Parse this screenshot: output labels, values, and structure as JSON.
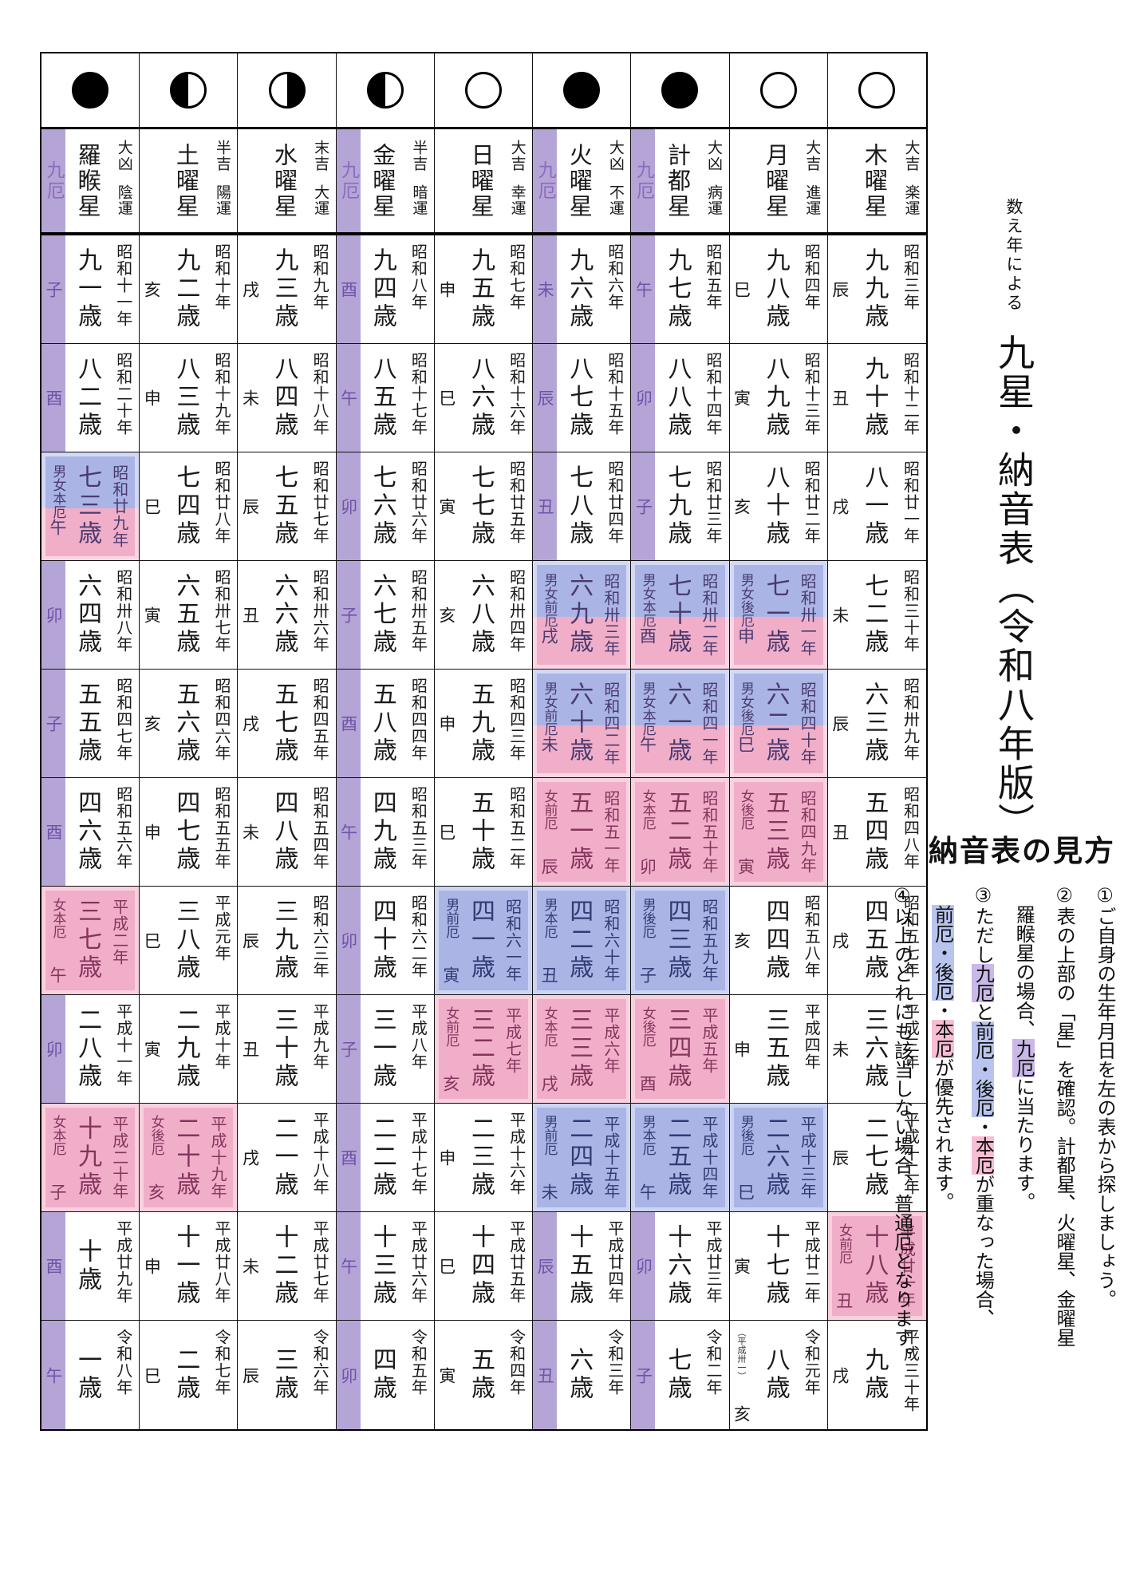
{
  "title": {
    "prefix": "数え年による",
    "main": "九星・納音表（令和八年版）"
  },
  "guide": {
    "heading": "納音表の見方",
    "lines": [
      {
        "indent": false,
        "parts": [
          {
            "t": "①ご自身の生年月日を左の表から探しましょう。"
          }
        ]
      },
      {
        "indent": false,
        "parts": [
          {
            "t": "②表の上部の「星」を確認。計都星、火曜星、金曜星"
          }
        ]
      },
      {
        "indent": true,
        "parts": [
          {
            "t": "羅睺星の場合、"
          },
          {
            "t": "九厄",
            "hl": "purple"
          },
          {
            "t": "に当たります。"
          }
        ]
      },
      {
        "indent": false,
        "parts": [
          {
            "t": "③ただし"
          },
          {
            "t": "九厄",
            "hl": "purple"
          },
          {
            "t": "と"
          },
          {
            "t": "前厄・後厄",
            "hl": "blue"
          },
          {
            "t": "・"
          },
          {
            "t": "本厄",
            "hl": "pink"
          },
          {
            "t": "が重なった場合、"
          }
        ]
      },
      {
        "indent": true,
        "parts": [
          {
            "t": "前厄・後厄",
            "hl": "blue"
          },
          {
            "t": "・"
          },
          {
            "t": "本厄",
            "hl": "pink"
          },
          {
            "t": "が優先されます。"
          }
        ]
      },
      {
        "indent": false,
        "parts": [
          {
            "t": "④以上のどれにも該当しない場合、普通厄となります。"
          }
        ]
      }
    ]
  },
  "table": {
    "kyuyaku_label": "九厄",
    "columns": [
      {
        "moon": "full",
        "star": "羅睺星",
        "luck": "大凶",
        "fortune": "陰運",
        "kyuyaku": true
      },
      {
        "moon": "half_left",
        "star": "土曜星",
        "luck": "半吉",
        "fortune": "陽運",
        "kyuyaku": false
      },
      {
        "moon": "half_right",
        "star": "水曜星",
        "luck": "末吉",
        "fortune": "大運",
        "kyuyaku": false
      },
      {
        "moon": "half_left",
        "star": "金曜星",
        "luck": "半吉",
        "fortune": "暗運",
        "kyuyaku": true
      },
      {
        "moon": "empty",
        "star": "日曜星",
        "luck": "大吉",
        "fortune": "幸運",
        "kyuyaku": false
      },
      {
        "moon": "full",
        "star": "火曜星",
        "luck": "大凶",
        "fortune": "不運",
        "kyuyaku": true
      },
      {
        "moon": "full",
        "star": "計都星",
        "luck": "大凶",
        "fortune": "病運",
        "kyuyaku": true
      },
      {
        "moon": "empty",
        "star": "月曜星",
        "luck": "大吉",
        "fortune": "進運",
        "kyuyaku": false
      },
      {
        "moon": "empty",
        "star": "木曜星",
        "luck": "大吉",
        "fortune": "楽運",
        "kyuyaku": false
      }
    ],
    "rows": [
      {
        "cells": [
          {
            "z": "子",
            "age": "九一歳",
            "year": "昭和十一年"
          },
          {
            "z": "亥",
            "age": "九二歳",
            "year": "昭和十年"
          },
          {
            "z": "戌",
            "age": "九三歳",
            "year": "昭和九年"
          },
          {
            "z": "酉",
            "age": "九四歳",
            "year": "昭和八年"
          },
          {
            "z": "申",
            "age": "九五歳",
            "year": "昭和七年"
          },
          {
            "z": "未",
            "age": "九六歳",
            "year": "昭和六年"
          },
          {
            "z": "午",
            "age": "九七歳",
            "year": "昭和五年"
          },
          {
            "z": "巳",
            "age": "九八歳",
            "year": "昭和四年"
          },
          {
            "z": "辰",
            "age": "九九歳",
            "year": "昭和三年"
          }
        ]
      },
      {
        "cells": [
          {
            "z": "酉",
            "age": "八二歳",
            "year": "昭和二十年"
          },
          {
            "z": "申",
            "age": "八三歳",
            "year": "昭和十九年"
          },
          {
            "z": "未",
            "age": "八四歳",
            "year": "昭和十八年"
          },
          {
            "z": "午",
            "age": "八五歳",
            "year": "昭和十七年"
          },
          {
            "z": "巳",
            "age": "八六歳",
            "year": "昭和十六年"
          },
          {
            "z": "辰",
            "age": "八七歳",
            "year": "昭和十五年"
          },
          {
            "z": "卯",
            "age": "八八歳",
            "year": "昭和十四年"
          },
          {
            "z": "寅",
            "age": "八九歳",
            "year": "昭和十三年"
          },
          {
            "z": "丑",
            "age": "九十歳",
            "year": "昭和十二年"
          }
        ]
      },
      {
        "cells": [
          {
            "z": "午",
            "age": "七三歳",
            "year": "昭和廿九年",
            "yaku": "男女本厄",
            "hl": "both"
          },
          {
            "z": "巳",
            "age": "七四歳",
            "year": "昭和廿八年"
          },
          {
            "z": "辰",
            "age": "七五歳",
            "year": "昭和廿七年"
          },
          {
            "z": "卯",
            "age": "七六歳",
            "year": "昭和廿六年"
          },
          {
            "z": "寅",
            "age": "七七歳",
            "year": "昭和廿五年"
          },
          {
            "z": "丑",
            "age": "七八歳",
            "year": "昭和廿四年"
          },
          {
            "z": "子",
            "age": "七九歳",
            "year": "昭和廿三年"
          },
          {
            "z": "亥",
            "age": "八十歳",
            "year": "昭和廿二年"
          },
          {
            "z": "戌",
            "age": "八一歳",
            "year": "昭和廿一年"
          }
        ]
      },
      {
        "cells": [
          {
            "z": "卯",
            "age": "六四歳",
            "year": "昭和卅八年"
          },
          {
            "z": "寅",
            "age": "六五歳",
            "year": "昭和卅七年"
          },
          {
            "z": "丑",
            "age": "六六歳",
            "year": "昭和卅六年"
          },
          {
            "z": "子",
            "age": "六七歳",
            "year": "昭和卅五年"
          },
          {
            "z": "亥",
            "age": "六八歳",
            "year": "昭和卅四年"
          },
          {
            "z": "戌",
            "age": "六九歳",
            "year": "昭和卅三年",
            "yaku": "男女前厄",
            "hl": "both"
          },
          {
            "z": "酉",
            "age": "七十歳",
            "year": "昭和卅二年",
            "yaku": "男女本厄",
            "hl": "both"
          },
          {
            "z": "申",
            "age": "七一歳",
            "year": "昭和卅一年",
            "yaku": "男女後厄",
            "hl": "both"
          },
          {
            "z": "未",
            "age": "七二歳",
            "year": "昭和三十年"
          }
        ]
      },
      {
        "cells": [
          {
            "z": "子",
            "age": "五五歳",
            "year": "昭和四七年"
          },
          {
            "z": "亥",
            "age": "五六歳",
            "year": "昭和四六年"
          },
          {
            "z": "戌",
            "age": "五七歳",
            "year": "昭和四五年"
          },
          {
            "z": "酉",
            "age": "五八歳",
            "year": "昭和四四年"
          },
          {
            "z": "申",
            "age": "五九歳",
            "year": "昭和四三年"
          },
          {
            "z": "未",
            "age": "六十歳",
            "year": "昭和四二年",
            "yaku": "男女前厄",
            "hl": "both"
          },
          {
            "z": "午",
            "age": "六一歳",
            "year": "昭和四一年",
            "yaku": "男女本厄",
            "hl": "both"
          },
          {
            "z": "巳",
            "age": "六二歳",
            "year": "昭和四十年",
            "yaku": "男女後厄",
            "hl": "both"
          },
          {
            "z": "辰",
            "age": "六三歳",
            "year": "昭和卅九年"
          }
        ]
      },
      {
        "cells": [
          {
            "z": "酉",
            "age": "四六歳",
            "year": "昭和五六年"
          },
          {
            "z": "申",
            "age": "四七歳",
            "year": "昭和五五年"
          },
          {
            "z": "未",
            "age": "四八歳",
            "year": "昭和五四年"
          },
          {
            "z": "午",
            "age": "四九歳",
            "year": "昭和五三年"
          },
          {
            "z": "巳",
            "age": "五十歳",
            "year": "昭和五二年"
          },
          {
            "z": "辰",
            "age": "五一歳",
            "year": "昭和五一年",
            "yaku": "女前厄",
            "hl": "female"
          },
          {
            "z": "卯",
            "age": "五二歳",
            "year": "昭和五十年",
            "yaku": "女本厄",
            "hl": "female"
          },
          {
            "z": "寅",
            "age": "五三歳",
            "year": "昭和四九年",
            "yaku": "女後厄",
            "hl": "female"
          },
          {
            "z": "丑",
            "age": "五四歳",
            "year": "昭和四八年"
          }
        ]
      },
      {
        "cells": [
          {
            "z": "午",
            "age": "三七歳",
            "year": "平成二年",
            "yaku": "女本厄",
            "hl": "female"
          },
          {
            "z": "巳",
            "age": "三八歳",
            "year": "平成元年"
          },
          {
            "z": "辰",
            "age": "三九歳",
            "year": "昭和六三年"
          },
          {
            "z": "卯",
            "age": "四十歳",
            "year": "昭和六二年"
          },
          {
            "z": "寅",
            "age": "四一歳",
            "year": "昭和六一年",
            "yaku": "男前厄",
            "hl": "male"
          },
          {
            "z": "丑",
            "age": "四二歳",
            "year": "昭和六十年",
            "yaku": "男本厄",
            "hl": "male"
          },
          {
            "z": "子",
            "age": "四三歳",
            "year": "昭和五九年",
            "yaku": "男後厄",
            "hl": "male"
          },
          {
            "z": "亥",
            "age": "四四歳",
            "year": "昭和五八年"
          },
          {
            "z": "戌",
            "age": "四五歳",
            "year": "昭和五七年"
          }
        ]
      },
      {
        "cells": [
          {
            "z": "卯",
            "age": "二八歳",
            "year": "平成十一年"
          },
          {
            "z": "寅",
            "age": "二九歳",
            "year": "平成十年"
          },
          {
            "z": "丑",
            "age": "三十歳",
            "year": "平成九年"
          },
          {
            "z": "子",
            "age": "三一歳",
            "year": "平成八年"
          },
          {
            "z": "亥",
            "age": "三二歳",
            "year": "平成七年",
            "yaku": "女前厄",
            "hl": "female"
          },
          {
            "z": "戌",
            "age": "三三歳",
            "year": "平成六年",
            "yaku": "女本厄",
            "hl": "female"
          },
          {
            "z": "酉",
            "age": "三四歳",
            "year": "平成五年",
            "yaku": "女後厄",
            "hl": "female"
          },
          {
            "z": "申",
            "age": "三五歳",
            "year": "平成四年"
          },
          {
            "z": "未",
            "age": "三六歳",
            "year": "平成三年"
          }
        ]
      },
      {
        "cells": [
          {
            "z": "子",
            "age": "十九歳",
            "year": "平成二十年",
            "yaku": "女本厄",
            "hl": "female"
          },
          {
            "z": "亥",
            "age": "二十歳",
            "year": "平成十九年",
            "yaku": "女後厄",
            "hl": "female"
          },
          {
            "z": "戌",
            "age": "二一歳",
            "year": "平成十八年"
          },
          {
            "z": "酉",
            "age": "二二歳",
            "year": "平成十七年"
          },
          {
            "z": "申",
            "age": "二三歳",
            "year": "平成十六年"
          },
          {
            "z": "未",
            "age": "二四歳",
            "year": "平成十五年",
            "yaku": "男前厄",
            "hl": "male"
          },
          {
            "z": "午",
            "age": "二五歳",
            "year": "平成十四年",
            "yaku": "男本厄",
            "hl": "male"
          },
          {
            "z": "巳",
            "age": "二六歳",
            "year": "平成十三年",
            "yaku": "男後厄",
            "hl": "male"
          },
          {
            "z": "辰",
            "age": "二七歳",
            "year": "平成十二年"
          }
        ]
      },
      {
        "cells": [
          {
            "z": "酉",
            "age": "十歳",
            "year": "平成廿九年"
          },
          {
            "z": "申",
            "age": "十一歳",
            "year": "平成廿八年"
          },
          {
            "z": "未",
            "age": "十二歳",
            "year": "平成廿七年"
          },
          {
            "z": "午",
            "age": "十三歳",
            "year": "平成廿六年"
          },
          {
            "z": "巳",
            "age": "十四歳",
            "year": "平成廿五年"
          },
          {
            "z": "辰",
            "age": "十五歳",
            "year": "平成廿四年"
          },
          {
            "z": "卯",
            "age": "十六歳",
            "year": "平成廿三年"
          },
          {
            "z": "寅",
            "age": "十七歳",
            "year": "平成廿二年"
          },
          {
            "z": "丑",
            "age": "十八歳",
            "year": "平成廿一年",
            "yaku": "女前厄",
            "hl": "female"
          }
        ]
      },
      {
        "cells": [
          {
            "z": "午",
            "age": "一歳",
            "year": "令和八年"
          },
          {
            "z": "巳",
            "age": "二歳",
            "year": "令和七年"
          },
          {
            "z": "辰",
            "age": "三歳",
            "year": "令和六年"
          },
          {
            "z": "卯",
            "age": "四歳",
            "year": "令和五年"
          },
          {
            "z": "寅",
            "age": "五歳",
            "year": "令和四年"
          },
          {
            "z": "丑",
            "age": "六歳",
            "year": "令和三年"
          },
          {
            "z": "子",
            "age": "七歳",
            "year": "令和二年"
          },
          {
            "z": "亥",
            "age": "八歳",
            "year": "令和元年",
            "note": "（平成卅一）"
          },
          {
            "z": "戌",
            "age": "九歳",
            "year": "平成三十年"
          }
        ]
      }
    ]
  },
  "colors": {
    "kyuyaku_strip": "#b5a5d6",
    "highlight_blue": "#aab5e6",
    "highlight_pink": "#f0aec9",
    "guide_purple": "#c9b8e8",
    "guide_blue": "#b9c4ee",
    "guide_pink": "#f8bdd4"
  }
}
